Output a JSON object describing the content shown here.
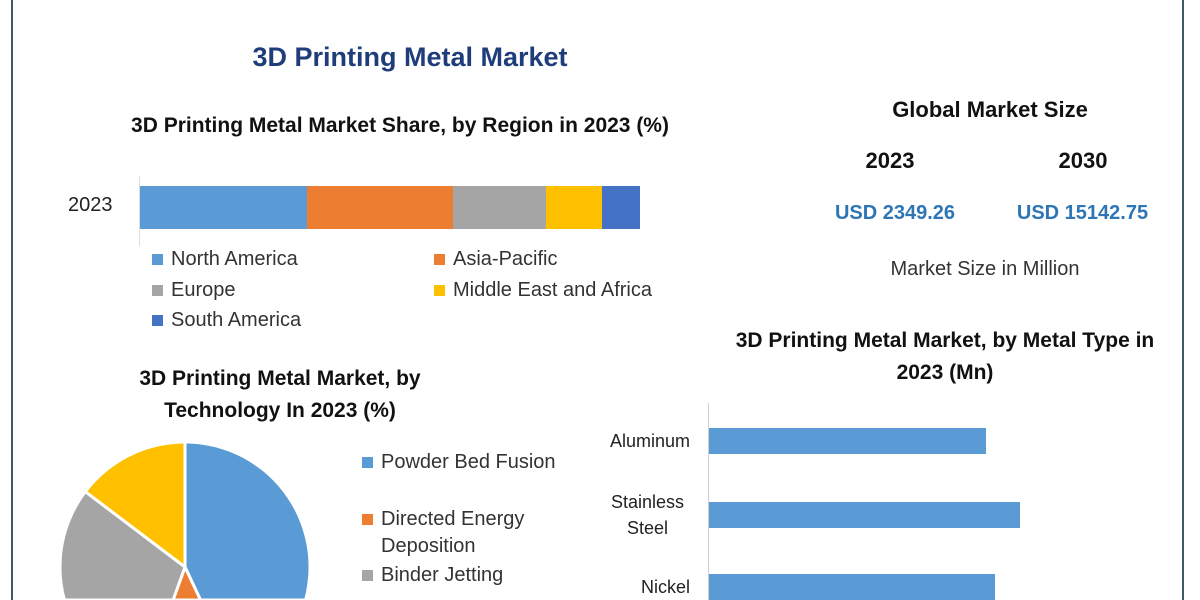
{
  "title": "3D Printing Metal Market",
  "global_market": {
    "title": "Global Market Size",
    "years": [
      "2023",
      "2030"
    ],
    "values": [
      "USD 2349.26",
      "USD 15142.75"
    ],
    "note": "Market Size in Million"
  },
  "chart_data": [
    {
      "type": "bar",
      "orientation": "horizontal-stacked",
      "title": "3D Printing Metal Market Share, by Region in 2023 (%)",
      "categories": [
        "2023"
      ],
      "series": [
        {
          "name": "North America",
          "values": [
            33.4
          ],
          "color": "#5b9bd5"
        },
        {
          "name": "Asia-Pacific",
          "values": [
            29.2
          ],
          "color": "#ed7d31"
        },
        {
          "name": "Europe",
          "values": [
            18.6
          ],
          "color": "#a5a5a5"
        },
        {
          "name": "Middle East and Africa",
          "values": [
            11.2
          ],
          "color": "#ffc000"
        },
        {
          "name": "South America",
          "values": [
            7.6
          ],
          "color": "#4472c4"
        }
      ],
      "legend": "bottom"
    },
    {
      "type": "pie",
      "title": "3D Printing Metal Market, by Technology In 2023 (%)",
      "slices": [
        {
          "name": "Powder Bed Fusion",
          "value": 43,
          "color": "#5b9bd5"
        },
        {
          "name": "Directed Energy Deposition",
          "value": 12.5,
          "color": "#ed7d31"
        },
        {
          "name": "Binder Jetting",
          "value": 29.8,
          "color": "#a5a5a5"
        },
        {
          "name": "",
          "value": 14.7,
          "color": "#ffc000"
        }
      ],
      "legend": "right"
    },
    {
      "type": "bar",
      "orientation": "horizontal",
      "title": "3D Printing Metal Market, by Metal Type in 2023 (Mn)",
      "categories": [
        "Aluminum",
        "Stainless Steel",
        "Nickel"
      ],
      "category_lines": [
        [
          "Aluminum"
        ],
        [
          "Stainless",
          "Steel"
        ],
        [
          "Nickel"
        ]
      ],
      "values_relative": [
        0.89,
        1.0,
        0.92
      ],
      "color": "#5b9bd5"
    }
  ]
}
